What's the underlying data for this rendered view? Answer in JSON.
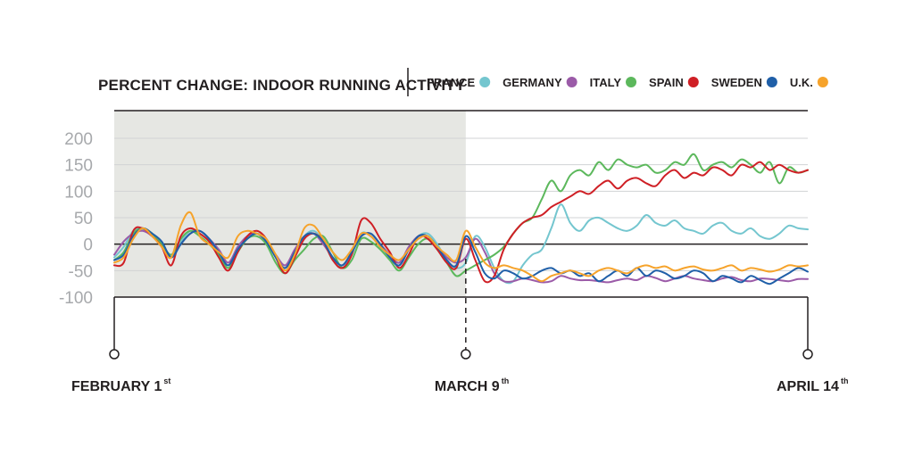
{
  "chart_data": {
    "type": "line",
    "title": "PERCENT CHANGE: INDOOR RUNNING ACTIVITY",
    "xlabel": "",
    "ylabel": "",
    "ylim": [
      -100,
      200
    ],
    "yticks": [
      "200",
      "150",
      "100",
      "50",
      "0",
      "-50",
      "-100"
    ],
    "ytick_values": [
      200,
      150,
      100,
      50,
      0,
      -50,
      -100
    ],
    "x_range_days": [
      0,
      73
    ],
    "x_ticks": [
      {
        "day": 0,
        "label": "FEBRUARY 1",
        "suffix": "st"
      },
      {
        "day": 37,
        "label": "MARCH 9",
        "suffix": "th"
      },
      {
        "day": 73,
        "label": "APRIL 14",
        "suffix": "th"
      }
    ],
    "shaded_region": {
      "from_day": 0,
      "to_day": 37,
      "color": "#e6e7e3"
    },
    "grid": true,
    "legend_position": "top",
    "series": [
      {
        "name": "FRANCE",
        "color": "#74c6cf",
        "x": [
          0,
          1,
          2,
          3,
          4,
          5,
          6,
          7,
          8,
          9,
          10,
          11,
          12,
          13,
          14,
          15,
          16,
          17,
          18,
          19,
          20,
          21,
          22,
          23,
          24,
          25,
          26,
          27,
          28,
          29,
          30,
          31,
          32,
          33,
          34,
          35,
          36,
          37,
          38,
          39,
          40,
          41,
          42,
          43,
          44,
          45,
          46,
          47,
          48,
          49,
          50,
          51,
          52,
          53,
          54,
          55,
          56,
          57,
          58,
          59,
          60,
          61,
          62,
          63,
          64,
          65,
          66,
          67,
          68,
          69,
          70,
          71,
          72,
          73
        ],
        "values": [
          -25,
          -5,
          25,
          28,
          15,
          0,
          -25,
          5,
          25,
          20,
          5,
          -15,
          -40,
          -10,
          15,
          20,
          10,
          -25,
          -45,
          -15,
          15,
          25,
          5,
          -30,
          -45,
          -20,
          20,
          15,
          -5,
          -25,
          -40,
          -10,
          15,
          20,
          0,
          -30,
          -45,
          -35,
          15,
          -5,
          -45,
          -70,
          -70,
          -40,
          -20,
          -10,
          30,
          75,
          40,
          25,
          45,
          50,
          40,
          30,
          25,
          35,
          55,
          40,
          35,
          45,
          30,
          25,
          20,
          35,
          40,
          25,
          20,
          30,
          15,
          10,
          20,
          35,
          30,
          28
        ]
      },
      {
        "name": "GERMANY",
        "color": "#9b5ba8",
        "x": [
          0,
          1,
          2,
          3,
          4,
          5,
          6,
          7,
          8,
          9,
          10,
          11,
          12,
          13,
          14,
          15,
          16,
          17,
          18,
          19,
          20,
          21,
          22,
          23,
          24,
          25,
          26,
          27,
          28,
          29,
          30,
          31,
          32,
          33,
          34,
          35,
          36,
          37,
          38,
          39,
          40,
          41,
          42,
          43,
          44,
          45,
          46,
          47,
          48,
          49,
          50,
          51,
          52,
          53,
          54,
          55,
          56,
          57,
          58,
          59,
          60,
          61,
          62,
          63,
          64,
          65,
          66,
          67,
          68,
          69,
          70,
          71,
          72,
          73
        ],
        "values": [
          -20,
          5,
          20,
          25,
          15,
          -5,
          -25,
          0,
          20,
          25,
          10,
          -10,
          -35,
          -5,
          15,
          20,
          5,
          -20,
          -40,
          -10,
          15,
          20,
          0,
          -25,
          -40,
          -15,
          15,
          20,
          0,
          -20,
          -35,
          -5,
          15,
          15,
          -5,
          -25,
          -35,
          -25,
          10,
          -15,
          -55,
          -70,
          -70,
          -65,
          -68,
          -72,
          -70,
          -60,
          -65,
          -68,
          -68,
          -70,
          -72,
          -68,
          -65,
          -68,
          -60,
          -64,
          -70,
          -65,
          -60,
          -65,
          -68,
          -70,
          -65,
          -62,
          -68,
          -70,
          -65,
          -66,
          -68,
          -70,
          -66,
          -66
        ]
      },
      {
        "name": "ITALY",
        "color": "#5cb85c",
        "x": [
          0,
          1,
          2,
          3,
          4,
          5,
          6,
          7,
          8,
          9,
          10,
          11,
          12,
          13,
          14,
          15,
          16,
          17,
          18,
          19,
          20,
          21,
          22,
          23,
          24,
          25,
          26,
          27,
          28,
          29,
          30,
          31,
          32,
          33,
          34,
          35,
          36,
          37,
          38,
          39,
          40,
          41,
          42,
          43,
          44,
          45,
          46,
          47,
          48,
          49,
          50,
          51,
          52,
          53,
          54,
          55,
          56,
          57,
          58,
          59,
          60,
          61,
          62,
          63,
          64,
          65,
          66,
          67,
          68,
          69,
          70,
          71,
          72,
          73
        ],
        "values": [
          -30,
          -15,
          20,
          30,
          20,
          0,
          -20,
          10,
          25,
          15,
          0,
          -20,
          -45,
          -15,
          10,
          15,
          0,
          -35,
          -55,
          -30,
          -10,
          10,
          15,
          -15,
          -45,
          -30,
          10,
          5,
          -10,
          -30,
          -50,
          -25,
          0,
          10,
          -10,
          -35,
          -60,
          -50,
          -40,
          -30,
          -20,
          -5,
          20,
          40,
          50,
          85,
          120,
          100,
          130,
          140,
          130,
          155,
          140,
          160,
          150,
          145,
          150,
          135,
          140,
          155,
          150,
          170,
          140,
          150,
          155,
          145,
          160,
          150,
          135,
          155,
          115,
          145,
          135,
          140
        ]
      },
      {
        "name": "SPAIN",
        "color": "#cf1f25",
        "x": [
          0,
          1,
          2,
          3,
          4,
          5,
          6,
          7,
          8,
          9,
          10,
          11,
          12,
          13,
          14,
          15,
          16,
          17,
          18,
          19,
          20,
          21,
          22,
          23,
          24,
          25,
          26,
          27,
          28,
          29,
          30,
          31,
          32,
          33,
          34,
          35,
          36,
          37,
          38,
          39,
          40,
          41,
          42,
          43,
          44,
          45,
          46,
          47,
          48,
          49,
          50,
          51,
          52,
          53,
          54,
          55,
          56,
          57,
          58,
          59,
          60,
          61,
          62,
          63,
          64,
          65,
          66,
          67,
          68,
          69,
          70,
          71,
          72,
          73
        ],
        "values": [
          -40,
          -35,
          25,
          30,
          15,
          -5,
          -40,
          15,
          30,
          20,
          5,
          -25,
          -50,
          -15,
          15,
          25,
          10,
          -25,
          -55,
          -25,
          10,
          20,
          5,
          -30,
          -45,
          -20,
          45,
          40,
          10,
          -15,
          -45,
          -20,
          15,
          10,
          -10,
          -35,
          -45,
          10,
          -30,
          -70,
          -60,
          -10,
          20,
          40,
          50,
          55,
          70,
          80,
          90,
          100,
          95,
          110,
          120,
          105,
          120,
          125,
          115,
          110,
          130,
          140,
          125,
          135,
          130,
          145,
          140,
          130,
          150,
          145,
          155,
          140,
          150,
          140,
          135,
          140
        ]
      },
      {
        "name": "SWEDEN",
        "color": "#1f5fa8",
        "x": [
          0,
          1,
          2,
          3,
          4,
          5,
          6,
          7,
          8,
          9,
          10,
          11,
          12,
          13,
          14,
          15,
          16,
          17,
          18,
          19,
          20,
          21,
          22,
          23,
          24,
          25,
          26,
          27,
          28,
          29,
          30,
          31,
          32,
          33,
          34,
          35,
          36,
          37,
          38,
          39,
          40,
          41,
          42,
          43,
          44,
          45,
          46,
          47,
          48,
          49,
          50,
          51,
          52,
          53,
          54,
          55,
          56,
          57,
          58,
          59,
          60,
          61,
          62,
          63,
          64,
          65,
          66,
          67,
          68,
          69,
          70,
          71,
          72,
          73
        ],
        "values": [
          -30,
          -20,
          15,
          30,
          20,
          5,
          -25,
          0,
          20,
          25,
          10,
          -15,
          -40,
          -10,
          10,
          20,
          5,
          -25,
          -45,
          -15,
          15,
          20,
          5,
          -25,
          -40,
          -15,
          15,
          20,
          0,
          -25,
          -40,
          -10,
          15,
          15,
          -5,
          -30,
          -40,
          15,
          -15,
          -55,
          -65,
          -50,
          -55,
          -65,
          -60,
          -50,
          -45,
          -55,
          -50,
          -60,
          -55,
          -70,
          -60,
          -50,
          -60,
          -45,
          -60,
          -50,
          -55,
          -65,
          -60,
          -50,
          -55,
          -70,
          -60,
          -65,
          -72,
          -60,
          -68,
          -75,
          -65,
          -55,
          -45,
          -52
        ]
      },
      {
        "name": "U.K.",
        "color": "#f6a32b",
        "x": [
          0,
          1,
          2,
          3,
          4,
          5,
          6,
          7,
          8,
          9,
          10,
          11,
          12,
          13,
          14,
          15,
          16,
          17,
          18,
          19,
          20,
          21,
          22,
          23,
          24,
          25,
          26,
          27,
          28,
          29,
          30,
          31,
          32,
          33,
          34,
          35,
          36,
          37,
          38,
          39,
          40,
          41,
          42,
          43,
          44,
          45,
          46,
          47,
          48,
          49,
          50,
          51,
          52,
          53,
          54,
          55,
          56,
          57,
          58,
          59,
          60,
          61,
          62,
          63,
          64,
          65,
          66,
          67,
          68,
          69,
          70,
          71,
          72,
          73
        ],
        "values": [
          -35,
          -25,
          10,
          30,
          15,
          -5,
          -25,
          35,
          60,
          15,
          0,
          -15,
          -25,
          15,
          25,
          20,
          10,
          -20,
          -50,
          -20,
          30,
          35,
          10,
          -15,
          -30,
          -10,
          20,
          15,
          -5,
          -20,
          -30,
          -10,
          10,
          15,
          -5,
          -20,
          -30,
          25,
          -5,
          -35,
          -45,
          -40,
          -45,
          -50,
          -60,
          -70,
          -60,
          -55,
          -50,
          -55,
          -60,
          -50,
          -45,
          -50,
          -55,
          -45,
          -40,
          -45,
          -42,
          -50,
          -45,
          -42,
          -48,
          -50,
          -45,
          -40,
          -50,
          -45,
          -48,
          -52,
          -48,
          -40,
          -42,
          -40
        ]
      }
    ]
  }
}
